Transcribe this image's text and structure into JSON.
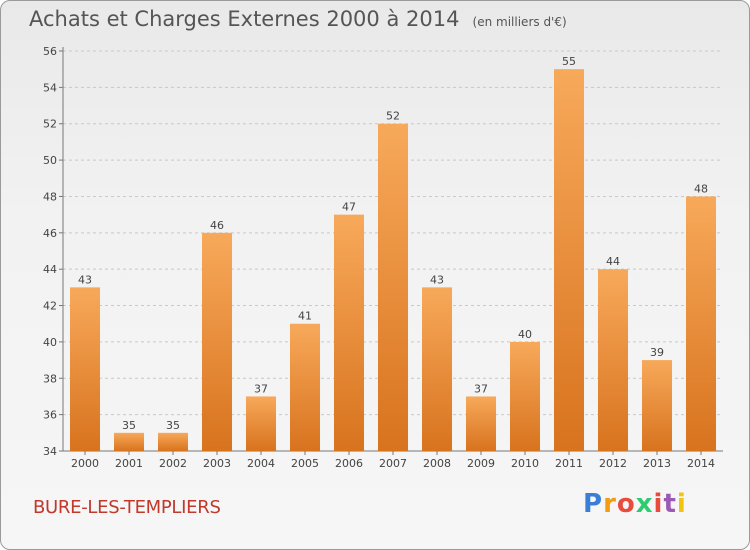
{
  "chart_data": {
    "type": "bar",
    "title": "Achats et Charges Externes 2000 à 2014",
    "subtitle": "(en milliers d'€)",
    "categories": [
      "2000",
      "2001",
      "2002",
      "2003",
      "2004",
      "2005",
      "2006",
      "2007",
      "2008",
      "2009",
      "2010",
      "2011",
      "2012",
      "2013",
      "2014"
    ],
    "values": [
      43,
      35,
      35,
      46,
      37,
      41,
      47,
      52,
      43,
      37,
      40,
      55,
      44,
      39,
      48
    ],
    "ylim": [
      34,
      56
    ],
    "yticks": [
      34,
      36,
      38,
      40,
      42,
      44,
      46,
      48,
      50,
      52,
      54,
      56
    ],
    "grid": "horizontal dashed",
    "bar_color": "#f0892b",
    "bar_color_light": "#f7a95a",
    "bar_color_dark": "#d8731e"
  },
  "commune": "BURE-LES-TEMPLIERS",
  "logo": {
    "letters": [
      "P",
      "r",
      "o",
      "x",
      "i",
      "t",
      "i"
    ],
    "colors": [
      "#3a7fd5",
      "#f39c12",
      "#e74c3c",
      "#2ecc71",
      "#e74c3c",
      "#9b59b6",
      "#f1c40f"
    ]
  }
}
